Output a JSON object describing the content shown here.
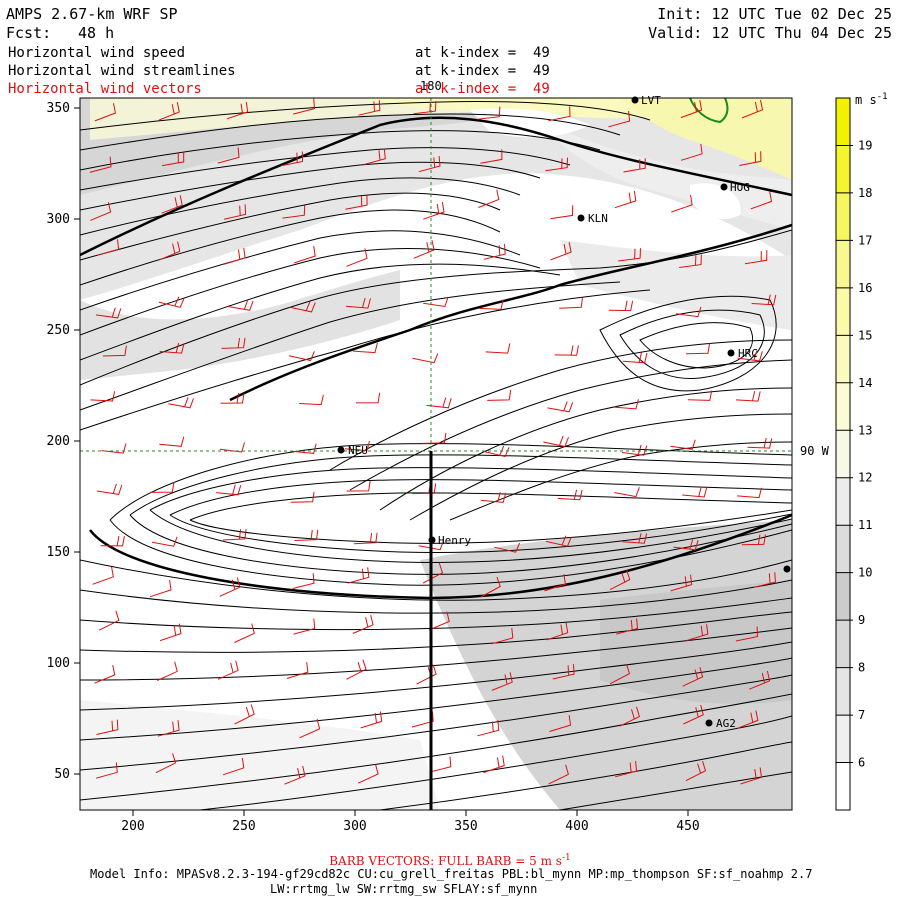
{
  "header": {
    "model": "AMPS 2.67-km WRF SP",
    "init": "Init: 12 UTC Tue 02 Dec 25",
    "fcst_label": "Fcst:",
    "fcst_value": "48 h",
    "valid": "Valid: 12 UTC Thu 04 Dec 25"
  },
  "fields": [
    {
      "name": "Horizontal wind speed",
      "level": "at k-index =  49",
      "color": "#000000"
    },
    {
      "name": "Horizontal wind streamlines",
      "level": "at k-index =  49",
      "color": "#000000"
    },
    {
      "name": "Horizontal wind vectors",
      "level": "at k-index =  49",
      "color": "#e01010"
    }
  ],
  "colorbar": {
    "unit": "m s",
    "unit_sup": "-1",
    "labels": [
      "6",
      "7",
      "8",
      "9",
      "10",
      "11",
      "12",
      "13",
      "14",
      "15",
      "16",
      "17",
      "18",
      "19"
    ],
    "colors": [
      "#ffffff",
      "#f0f0f0",
      "#e4e4e4",
      "#d8d8d8",
      "#cccccc",
      "#dcdcdc",
      "#ececec",
      "#f8f8e8",
      "#fbfbd5",
      "#fbfbc0",
      "#fafaa8",
      "#f8f890",
      "#f6f660",
      "#f4f430",
      "#f2f200"
    ]
  },
  "axes": {
    "x_ticks": [
      "200",
      "250",
      "300",
      "350",
      "400",
      "450"
    ],
    "y_ticks": [
      "350",
      "300",
      "250",
      "200",
      "150",
      "100",
      "50"
    ]
  },
  "grid_labels": {
    "meridian": "180",
    "parallel": "90 W"
  },
  "stations": [
    {
      "id": "LVT"
    },
    {
      "id": "HOG"
    },
    {
      "id": "KLN"
    },
    {
      "id": "HRC"
    },
    {
      "id": "NEU"
    },
    {
      "id": "Henry"
    },
    {
      "id": "AG2"
    },
    {
      "id": "east-edge"
    }
  ],
  "footer": {
    "barb_note": "BARB VECTORS: FULL BARB = 5 m s",
    "barb_sup": "-1",
    "model_info": "Model Info: MPASv8.2.3-194-gf29cd82c CU:cu_grell_freitas PBL:bl_mynn MP:mp_thompson SF:sf_noahmp 2.7",
    "physics": "LW:rrtmg_lw SW:rrtmg_sw SFLAY:sf_mynn"
  }
}
